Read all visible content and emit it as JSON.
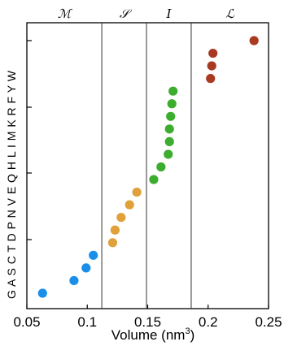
{
  "chart_data": {
    "type": "scatter",
    "title": "",
    "xlabel": "Volume (nm",
    "xlabel_superscript": "3",
    "xlabel_close": ")",
    "ylabel": "",
    "xlim": [
      0.05,
      0.25
    ],
    "x_ticks": [
      "0.05",
      "0.1",
      "0.15",
      "0.2",
      "0.25"
    ],
    "x_tick_values": [
      0.05,
      0.1,
      0.15,
      0.2,
      0.25
    ],
    "y_categories": [
      "G",
      "A",
      "S",
      "C",
      "T",
      "D",
      "P",
      "N",
      "V",
      "E",
      "Q",
      "H",
      "L",
      "I",
      "M",
      "K",
      "R",
      "F",
      "Y",
      "W"
    ],
    "groups": [
      {
        "label": "ℳ",
        "boundary_right": 0.112
      },
      {
        "label": "𝒮",
        "boundary_right": 0.149
      },
      {
        "label": "𝐼",
        "boundary_right": 0.186
      },
      {
        "label": "ℒ",
        "boundary_right": null
      }
    ],
    "grid": false,
    "series": [
      {
        "color": "#1a8fea",
        "points": [
          {
            "aa": "G",
            "x": 0.063
          },
          {
            "aa": "A",
            "x": 0.089
          },
          {
            "aa": "S",
            "x": 0.099
          },
          {
            "aa": "C",
            "x": 0.105
          }
        ]
      },
      {
        "color": "#e0a03a",
        "points": [
          {
            "aa": "T",
            "x": 0.121
          },
          {
            "aa": "D",
            "x": 0.123
          },
          {
            "aa": "P",
            "x": 0.128
          },
          {
            "aa": "N",
            "x": 0.135
          },
          {
            "aa": "V",
            "x": 0.141
          }
        ]
      },
      {
        "color": "#3cad2e",
        "points": [
          {
            "aa": "E",
            "x": 0.155
          },
          {
            "aa": "Q",
            "x": 0.161
          },
          {
            "aa": "H",
            "x": 0.167
          },
          {
            "aa": "L",
            "x": 0.168
          },
          {
            "aa": "I",
            "x": 0.168
          },
          {
            "aa": "M",
            "x": 0.169
          },
          {
            "aa": "K",
            "x": 0.17
          },
          {
            "aa": "R",
            "x": 0.171
          }
        ]
      },
      {
        "color": "#a83a22",
        "points": [
          {
            "aa": "F",
            "x": 0.202
          },
          {
            "aa": "Y",
            "x": 0.203
          },
          {
            "aa": "W",
            "x": 0.204
          },
          {
            "aa": "W2",
            "x": 0.238
          }
        ]
      }
    ]
  }
}
